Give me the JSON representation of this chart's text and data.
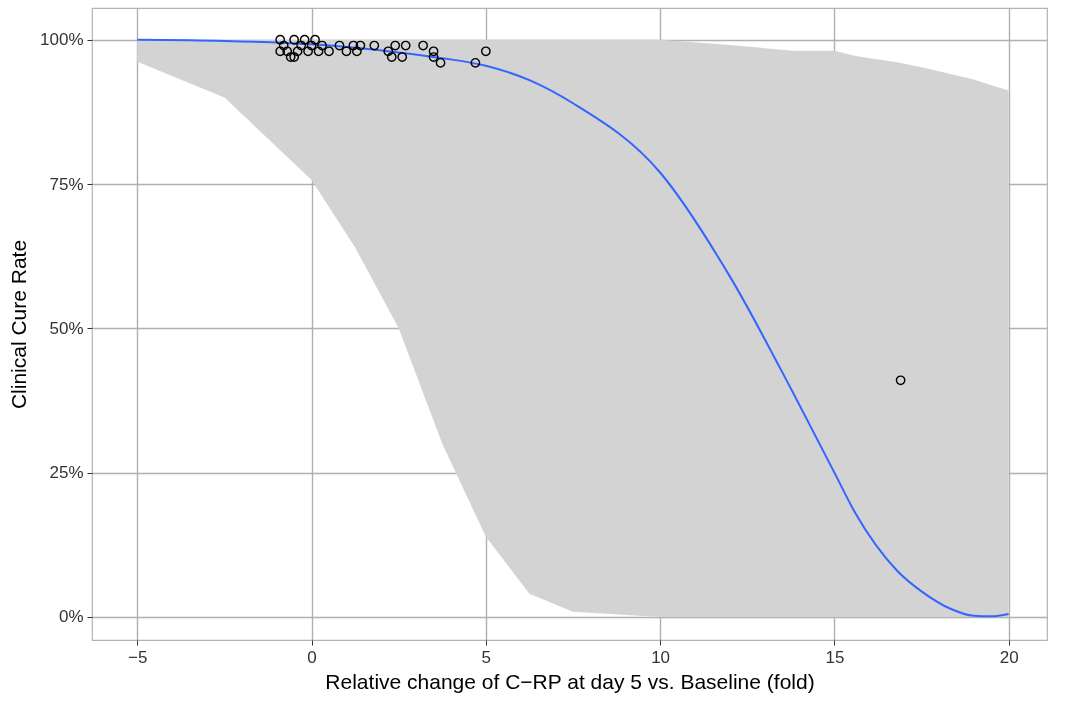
{
  "chart_data": {
    "type": "scatter",
    "xlabel": "Relative change of C−RP at day 5 vs. Baseline (fold)",
    "ylabel": "Clinical Cure Rate",
    "xlim": [
      -6.3,
      21.1
    ],
    "ylim": [
      -4,
      105.5
    ],
    "xticks": [
      {
        "value": -5,
        "label": "−5"
      },
      0,
      5,
      10,
      15,
      20
    ],
    "yticks": [
      {
        "value": 0,
        "label": "0%"
      },
      {
        "value": 25,
        "label": "25%"
      },
      {
        "value": 50,
        "label": "50%"
      },
      {
        "value": 75,
        "label": "75%"
      },
      {
        "value": 100,
        "label": "100%"
      }
    ],
    "grid": true,
    "series": [
      {
        "type": "line",
        "color": "#3366ff",
        "marker": "none",
        "x": [
          -5,
          -2.5,
          0,
          1.25,
          2.5,
          3.75,
          5,
          6.25,
          7.5,
          10,
          12,
          13.8,
          15,
          15.6,
          16.8,
          17.6,
          18.3,
          19,
          19.5,
          20
        ],
        "values": [
          100,
          99.8,
          99.2,
          98.6,
          97.8,
          96.8,
          95.5,
          93,
          89,
          77,
          59,
          39,
          25,
          18,
          8,
          4,
          1.5,
          0.2,
          0.1,
          0.5
        ],
        "lower": [
          96.2,
          90,
          75.7,
          64,
          50,
          30,
          13.9,
          4,
          0.9,
          0,
          0,
          0,
          0,
          0,
          0,
          0,
          0,
          0,
          0,
          0
        ],
        "upper": [
          100,
          100,
          100,
          100,
          100,
          100,
          100,
          100,
          100,
          100,
          99.1,
          98.1,
          98.1,
          97.2,
          96.1,
          95.1,
          94.1,
          93.1,
          92.1,
          91.2
        ]
      },
      {
        "type": "scatter",
        "color": "#000000",
        "marker": "circle",
        "x": [
          -0.9,
          -0.8,
          -0.7,
          -0.6,
          -0.5,
          -0.4,
          -0.3,
          -0.2,
          -0.1,
          0,
          0.1,
          0.2,
          0.3,
          -0.9,
          -0.5,
          0.5,
          0.8,
          1.0,
          1.2,
          1.4,
          1.8,
          1.3,
          2.2,
          2.3,
          2.4,
          2.7,
          2.6,
          3.2,
          3.5,
          3.5,
          3.7,
          4.7,
          5.0,
          16.9
        ],
        "values": [
          100,
          99,
          98,
          97,
          100,
          98,
          99,
          100,
          98,
          99,
          100,
          98,
          99,
          98,
          97,
          98,
          99,
          98,
          99,
          99,
          99,
          98,
          98,
          97,
          99,
          99,
          97,
          99,
          98,
          97,
          96,
          96,
          98,
          41
        ]
      }
    ]
  }
}
